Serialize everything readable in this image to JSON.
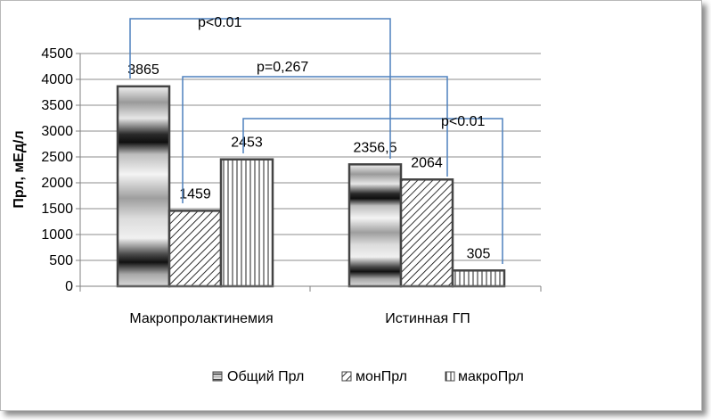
{
  "chart_data": {
    "type": "bar",
    "title": "",
    "xlabel": "",
    "ylabel": "Прл, мЕд/л",
    "ylim": [
      0,
      4500
    ],
    "yticks": [
      0,
      500,
      1000,
      1500,
      2000,
      2500,
      3000,
      3500,
      4000,
      4500
    ],
    "grid": true,
    "legend_position": "bottom",
    "categories": [
      "Макропролактинемия",
      "Истинная ГП"
    ],
    "series": [
      {
        "name": "Общий Прл",
        "values": [
          3865,
          2356.5
        ],
        "labels": [
          "3865",
          "2356,5"
        ]
      },
      {
        "name": "монПрл",
        "values": [
          1459,
          2064
        ],
        "labels": [
          "1459",
          "2064"
        ]
      },
      {
        "name": "макроПрл",
        "values": [
          2453,
          305
        ],
        "labels": [
          "2453",
          "305"
        ]
      }
    ],
    "annotations": [
      {
        "text": "p<0.01",
        "series_index": 0
      },
      {
        "text": "p=0,267",
        "series_index": 1
      },
      {
        "text": "p<0.01",
        "series_index": 2
      }
    ],
    "colors": {
      "axis": "#808080",
      "grid": "#8c8c8c",
      "bracket": "#4f81bd",
      "bar_dark": "#1e1e1e",
      "bar_light": "#f2f2f2"
    }
  }
}
